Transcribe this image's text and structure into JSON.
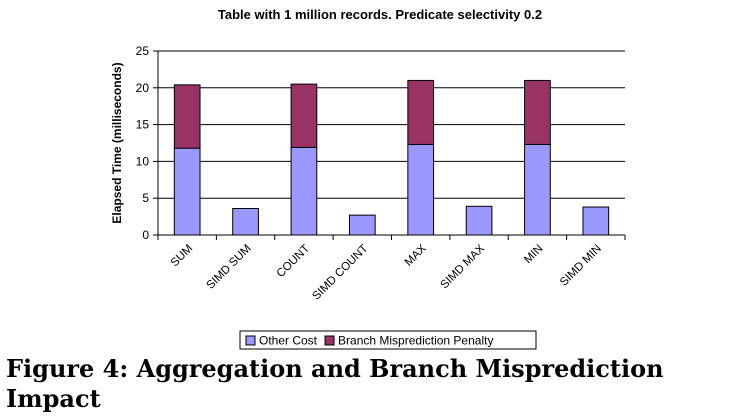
{
  "chart_data": {
    "type": "bar",
    "stacked": true,
    "title": "Table with 1 million records. Predicate selectivity 0.2",
    "xlabel": "",
    "ylabel": "Elapsed Time (milliseconds)",
    "ylim": [
      0,
      25
    ],
    "yticks": [
      0,
      5,
      10,
      15,
      20,
      25
    ],
    "categories": [
      "SUM",
      "SIMD SUM",
      "COUNT",
      "SIMD COUNT",
      "MAX",
      "SIMD MAX",
      "MIN",
      "SIMD MIN"
    ],
    "series": [
      {
        "name": "Other Cost",
        "color": "#9999ff",
        "values": [
          11.8,
          3.6,
          11.9,
          2.7,
          12.3,
          3.9,
          12.3,
          3.8
        ]
      },
      {
        "name": "Branch Misprediction Penalty",
        "color": "#993366",
        "values": [
          8.6,
          0,
          8.6,
          0,
          8.7,
          0,
          8.7,
          0
        ]
      }
    ],
    "grid": true,
    "legend": "bottom"
  },
  "caption": "Figure 4:  Aggregation and Branch Misprediction Impact"
}
